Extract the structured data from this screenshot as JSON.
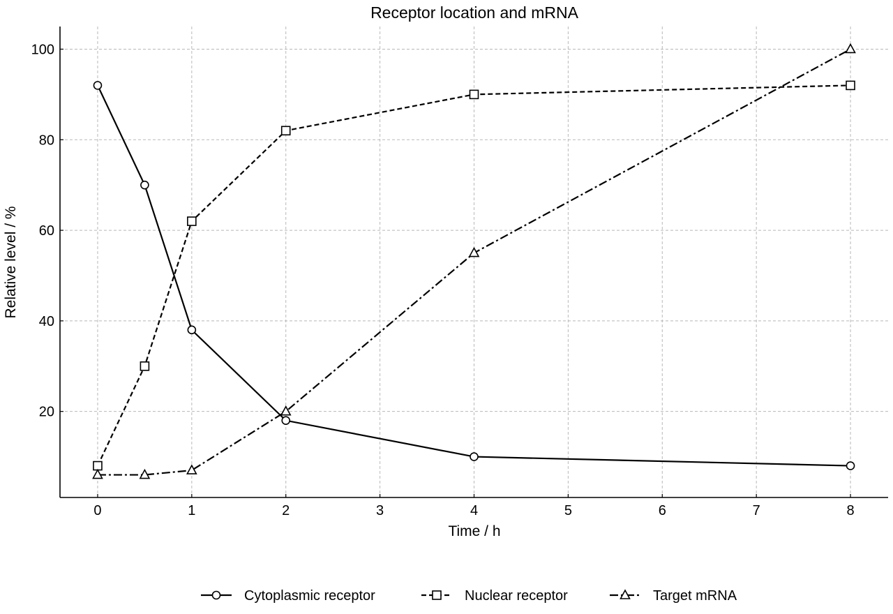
{
  "chart_data": {
    "type": "line",
    "title": "Receptor location and mRNA",
    "xlabel": "Time / h",
    "ylabel": "Relative level / %",
    "xlim": [
      -0.4,
      8.4
    ],
    "ylim": [
      1,
      105
    ],
    "xticks": [
      0,
      1,
      2,
      3,
      4,
      5,
      6,
      7,
      8
    ],
    "yticks": [
      20,
      40,
      60,
      80,
      100
    ],
    "grid": true,
    "legend_position": "bottom-center",
    "x": [
      0,
      0.5,
      1,
      2,
      4,
      8
    ],
    "series": [
      {
        "name": "Cytoplasmic receptor",
        "values": [
          92,
          70,
          38,
          18,
          10,
          8
        ],
        "marker": "circle",
        "linestyle": "solid",
        "color": "#000000"
      },
      {
        "name": "Nuclear receptor",
        "values": [
          8,
          30,
          62,
          82,
          90,
          92
        ],
        "marker": "square",
        "linestyle": "dashed",
        "color": "#000000"
      },
      {
        "name": "Target mRNA",
        "values": [
          6,
          6,
          7,
          20,
          55,
          100
        ],
        "marker": "triangle",
        "linestyle": "dashdot",
        "color": "#000000"
      }
    ]
  }
}
